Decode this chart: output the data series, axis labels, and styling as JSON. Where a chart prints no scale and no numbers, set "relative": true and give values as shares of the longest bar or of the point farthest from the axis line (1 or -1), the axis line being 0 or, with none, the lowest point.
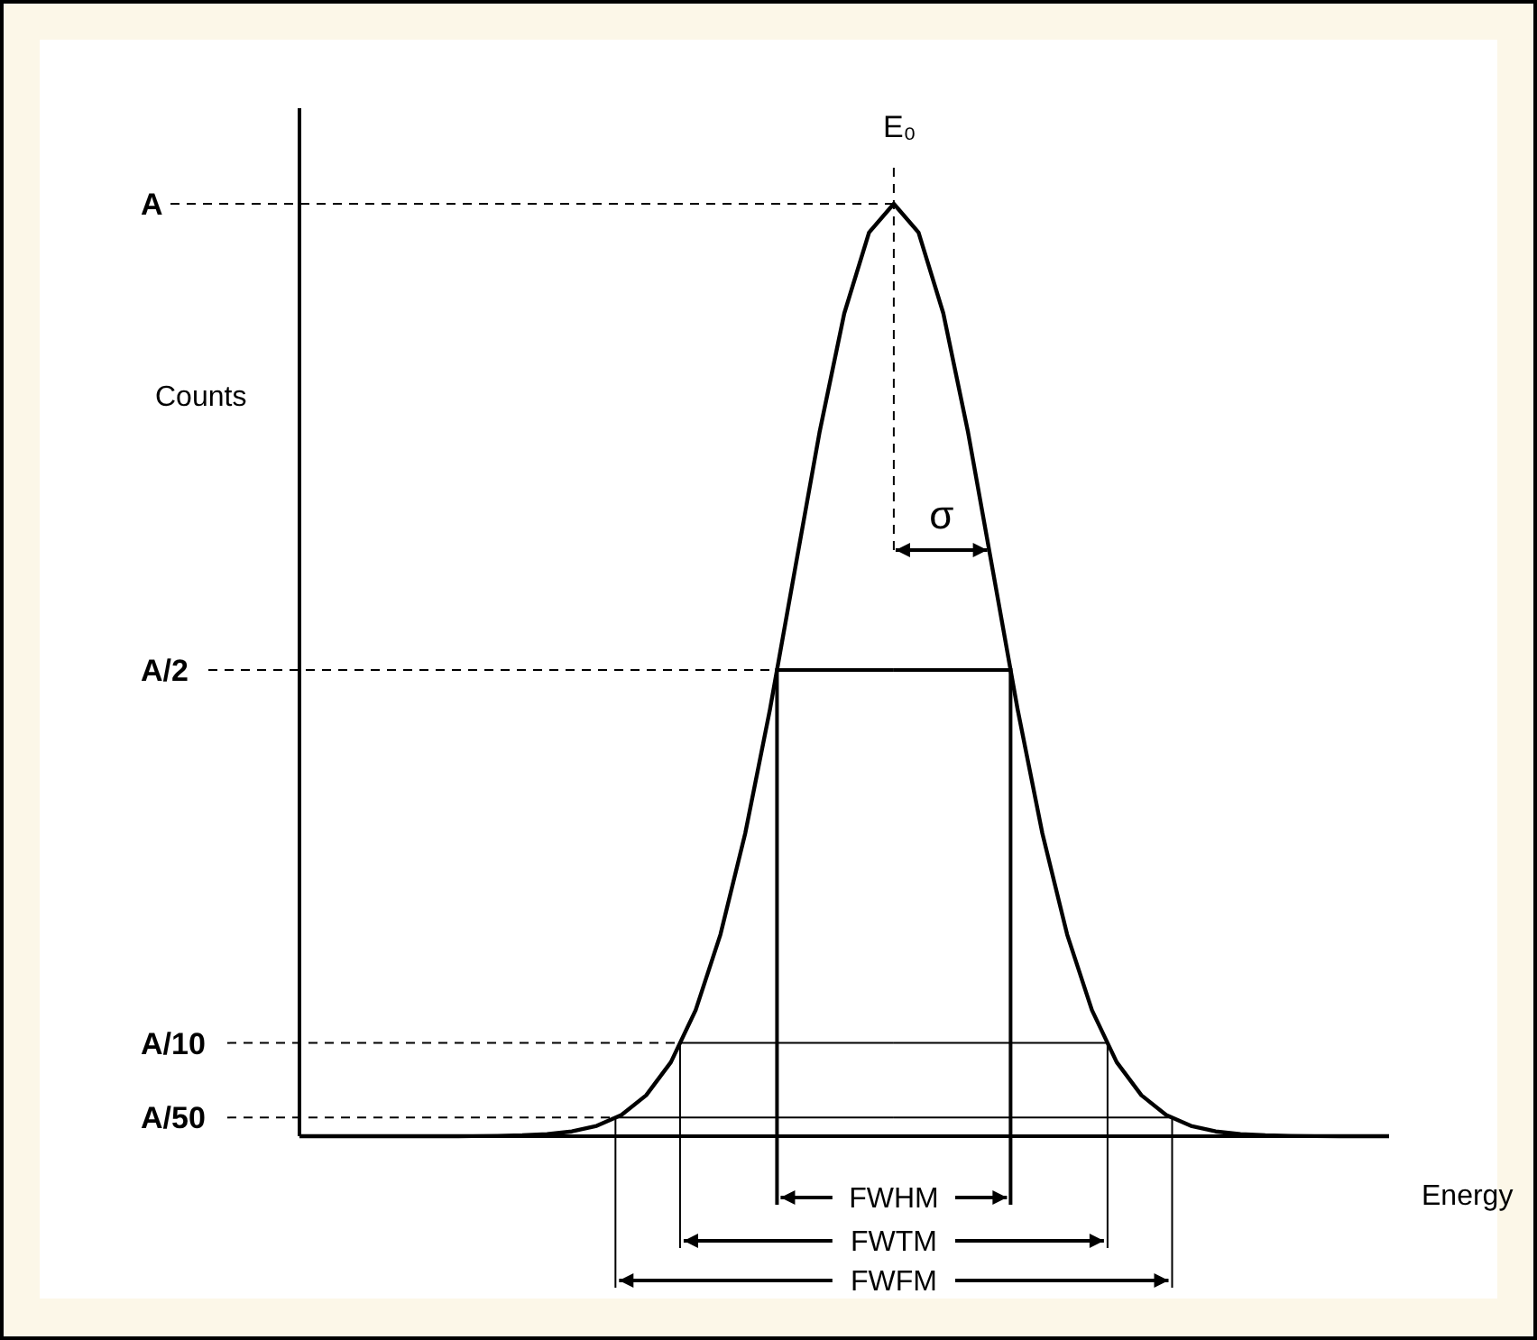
{
  "chart_data": {
    "type": "line",
    "xlabel": "Energy",
    "ylabel": "Counts",
    "relative": true,
    "categories": [
      null,
      null,
      null,
      null,
      null,
      null,
      null,
      null,
      null,
      null,
      null,
      null,
      null,
      null,
      null,
      null,
      null,
      null,
      null,
      null,
      null,
      null,
      null,
      null,
      null,
      null,
      null,
      null,
      null,
      null,
      null,
      null,
      null,
      null,
      null,
      null,
      null,
      null,
      null,
      null,
      null,
      null,
      null,
      null,
      null
    ],
    "series": [
      {
        "color": "#000000",
        "values": [
          0,
          0,
          0,
          0,
          0,
          0,
          0,
          0.0001,
          0.0003,
          0.0009,
          0.0022,
          0.0051,
          0.0111,
          0.0228,
          0.0439,
          0.0794,
          0.1353,
          0.2163,
          0.3247,
          0.4578,
          0.6065,
          0.7548,
          0.8825,
          0.9692,
          1,
          0.9692,
          0.8825,
          0.7548,
          0.6065,
          0.4578,
          0.3247,
          0.2163,
          0.1353,
          0.0794,
          0.0439,
          0.0228,
          0.0111,
          0.0051,
          0.0022,
          0.0009,
          0.0003,
          0.0001,
          0,
          0,
          0
        ]
      }
    ],
    "marker": "none",
    "line_style": "solid",
    "ref_lines": [
      {
        "axis": "y",
        "value": 1,
        "label": "A",
        "line_style": "dashed"
      },
      {
        "axis": "y",
        "value": 0.5,
        "label": "A/2",
        "line_style": "dashed"
      },
      {
        "axis": "y",
        "value": 0.1,
        "label": "A/10",
        "line_style": "dashed"
      },
      {
        "axis": "y",
        "value": 0.02,
        "label": "A/50",
        "line_style": "dashed"
      }
    ],
    "annotations": [
      "E₀",
      "σ",
      "FWHM",
      "FWTM",
      "FWFM"
    ]
  }
}
